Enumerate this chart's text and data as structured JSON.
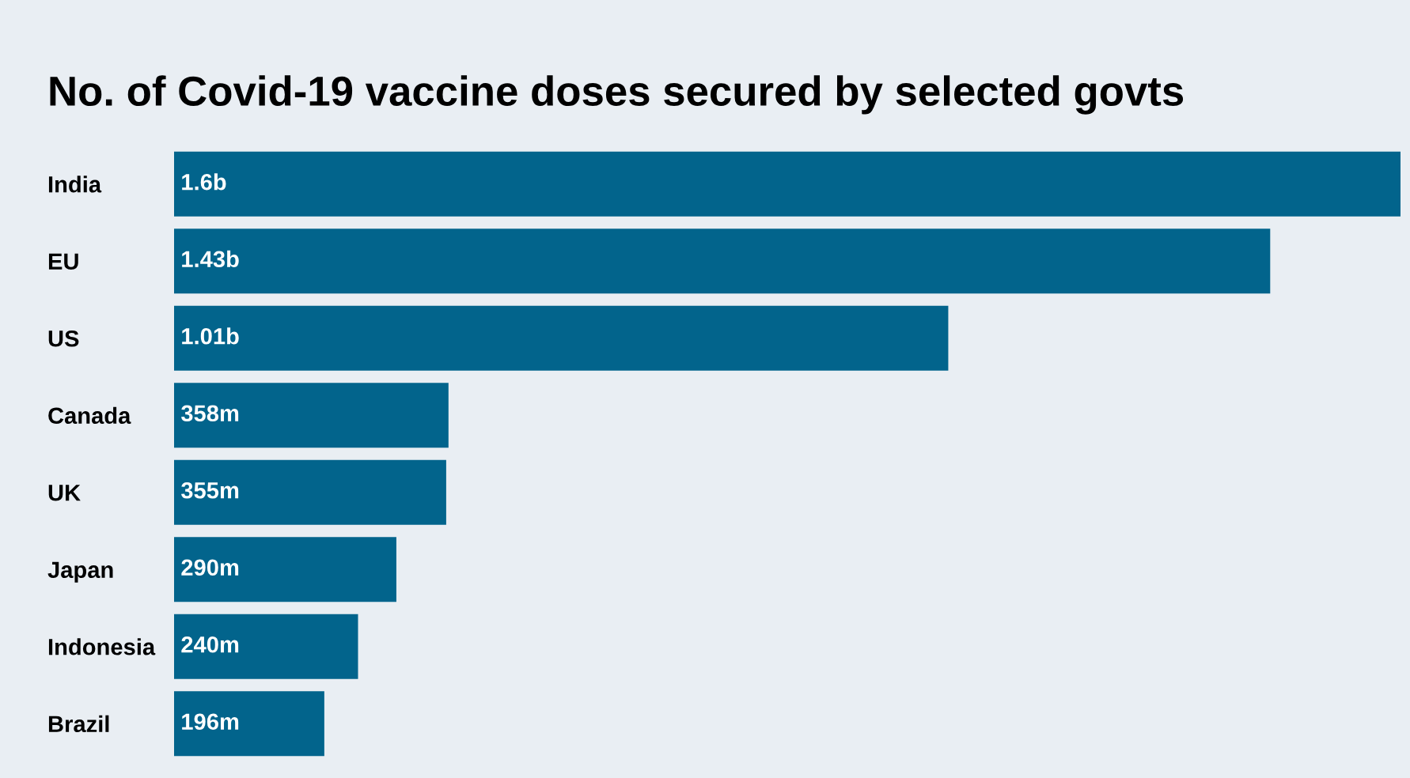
{
  "chart_data": {
    "type": "bar",
    "orientation": "horizontal",
    "title": "No. of Covid-19 vaccine doses secured by selected govts",
    "categories": [
      "India",
      "EU",
      "US",
      "Canada",
      "UK",
      "Japan",
      "Indonesia",
      "Brazil"
    ],
    "values": [
      1600000000,
      1430000000,
      1010000000,
      358000000,
      355000000,
      290000000,
      240000000,
      196000000
    ],
    "value_labels": [
      "1.6b",
      "1.43b",
      "1.01b",
      "358m",
      "355m",
      "290m",
      "240m",
      "196m"
    ],
    "color": "#02648c",
    "tick_labels": "y",
    "grid": false,
    "legend": false
  }
}
